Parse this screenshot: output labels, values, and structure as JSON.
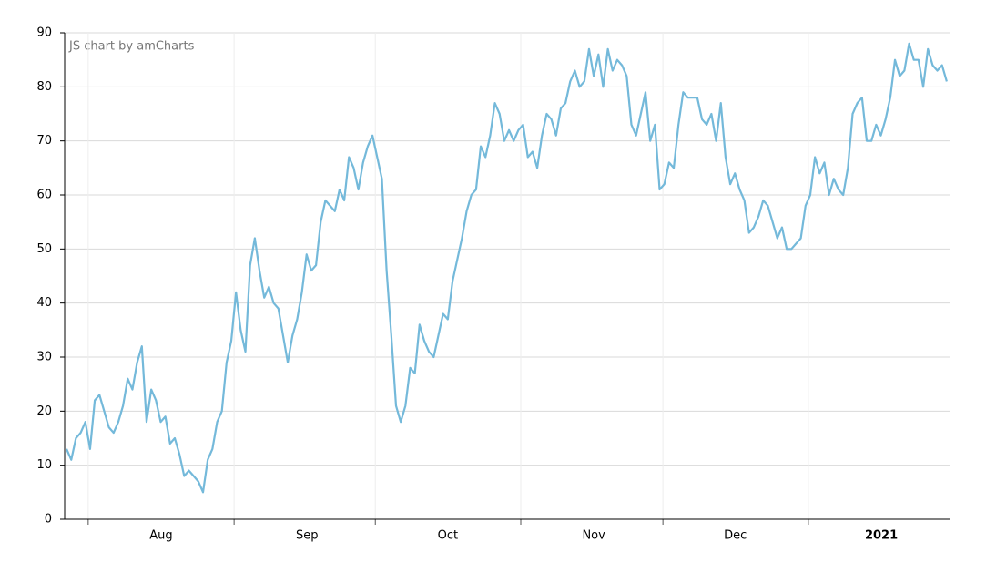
{
  "chart_data": {
    "type": "line",
    "credit": "JS chart by amCharts",
    "values": [
      13,
      11,
      15,
      16,
      18,
      13,
      22,
      23,
      20,
      17,
      16,
      18,
      21,
      26,
      24,
      29,
      32,
      18,
      24,
      22,
      18,
      19,
      14,
      15,
      12,
      8,
      9,
      8,
      7,
      5,
      11,
      13,
      18,
      20,
      29,
      33,
      42,
      35,
      31,
      47,
      52,
      46,
      41,
      43,
      40,
      39,
      34,
      29,
      34,
      37,
      42,
      49,
      46,
      47,
      55,
      59,
      58,
      57,
      61,
      59,
      67,
      65,
      61,
      66,
      69,
      71,
      67,
      63,
      46,
      34,
      21,
      18,
      21,
      28,
      27,
      36,
      33,
      31,
      30,
      34,
      38,
      37,
      44,
      48,
      52,
      57,
      60,
      61,
      69,
      67,
      71,
      77,
      75,
      70,
      72,
      70,
      72,
      73,
      67,
      68,
      65,
      71,
      75,
      74,
      71,
      76,
      77,
      81,
      83,
      80,
      81,
      87,
      82,
      86,
      80,
      87,
      83,
      85,
      84,
      82,
      73,
      71,
      75,
      79,
      70,
      73,
      61,
      62,
      66,
      65,
      73,
      79,
      78,
      78,
      78,
      74,
      73,
      75,
      70,
      77,
      67,
      62,
      64,
      61,
      59,
      53,
      54,
      56,
      59,
      58,
      55,
      52,
      54,
      50,
      50,
      51,
      52,
      58,
      60,
      67,
      64,
      66,
      60,
      63,
      61,
      60,
      65,
      75,
      77,
      78,
      70,
      70,
      73,
      71,
      74,
      78,
      85,
      82,
      83,
      88,
      85,
      85,
      80,
      87,
      84,
      83,
      84,
      81
    ],
    "color": "#74b9da",
    "xlim": [
      -0.4,
      187.6
    ],
    "xticks": [
      {
        "value": 20.1,
        "label": "Aug"
      },
      {
        "value": 51.1,
        "label": "Sep"
      },
      {
        "value": 81.0,
        "label": "Oct"
      },
      {
        "value": 112.0,
        "label": "Nov"
      },
      {
        "value": 142.1,
        "label": "Dec"
      },
      {
        "value": 173.1,
        "label": "2021",
        "bold": true
      }
    ],
    "xgrid": [
      4.6,
      35.6,
      65.6,
      96.5,
      126.7,
      157.6
    ],
    "ylim": [
      0,
      90
    ],
    "yticks": [
      0,
      10,
      20,
      30,
      40,
      50,
      60,
      70,
      80,
      90
    ],
    "grid": true
  }
}
